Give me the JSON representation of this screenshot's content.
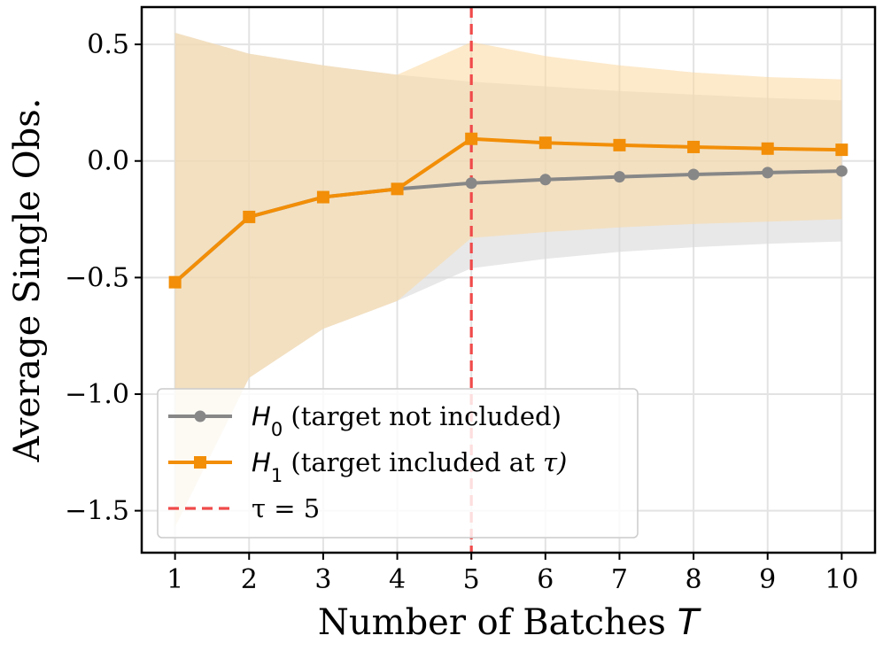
{
  "chart_data": {
    "type": "line",
    "title": "",
    "xlabel": "Number of Batches T",
    "ylabel": "Average Single Obs.",
    "xlim": [
      0.55,
      10.45
    ],
    "ylim": [
      -1.68,
      0.66
    ],
    "x_ticks": [
      1,
      2,
      3,
      4,
      5,
      6,
      7,
      8,
      9,
      10
    ],
    "x_tick_labels": [
      "1",
      "2",
      "3",
      "4",
      "5",
      "6",
      "7",
      "8",
      "9",
      "10"
    ],
    "y_ticks": [
      0.5,
      0.0,
      -0.5,
      -1.0,
      -1.5
    ],
    "y_tick_labels": [
      "0.5",
      "0.0",
      "−0.5",
      "−1.0",
      "−1.5"
    ],
    "grid": true,
    "legend_position": "bottom-left",
    "x": [
      1,
      2,
      3,
      4,
      5,
      6,
      7,
      8,
      9,
      10
    ],
    "series": [
      {
        "name": "H0 (target not included)",
        "name_main": "H",
        "name_sub": "0",
        "name_rest": " (target not included)",
        "color": "#878787",
        "marker": "circle",
        "values": [
          -0.52,
          -0.24,
          -0.155,
          -0.12,
          -0.095,
          -0.08,
          -0.068,
          -0.058,
          -0.05,
          -0.043
        ],
        "band_lower": [
          -1.57,
          -0.93,
          -0.72,
          -0.6,
          -0.46,
          -0.42,
          -0.39,
          -0.37,
          -0.355,
          -0.345
        ],
        "band_upper": [
          0.55,
          0.46,
          0.41,
          0.37,
          0.34,
          0.32,
          0.3,
          0.285,
          0.27,
          0.26
        ],
        "band_color": "#d9d9d9"
      },
      {
        "name": "H1 (target included at τ)",
        "name_main": "H",
        "name_sub": "1",
        "name_rest": " (target included at ",
        "name_end": "τ)",
        "color": "#f28e07",
        "marker": "square",
        "values": [
          -0.52,
          -0.24,
          -0.155,
          -0.12,
          0.095,
          0.078,
          0.068,
          0.06,
          0.053,
          0.048
        ],
        "band_lower": [
          -1.57,
          -0.93,
          -0.72,
          -0.6,
          -0.33,
          -0.305,
          -0.285,
          -0.27,
          -0.26,
          -0.25
        ],
        "band_upper": [
          0.55,
          0.46,
          0.41,
          0.37,
          0.51,
          0.45,
          0.41,
          0.38,
          0.36,
          0.35
        ],
        "band_color": "#fbd9a0"
      }
    ],
    "vline": {
      "x": 5,
      "color": "#f04a4a",
      "label": "τ = 5"
    }
  }
}
